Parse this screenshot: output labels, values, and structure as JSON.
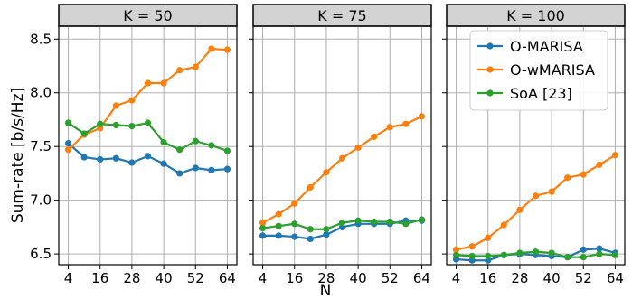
{
  "chart_data": {
    "type": "line",
    "ylabel": "Sum-rate [b/s/Hz]",
    "xlabel": "N",
    "x": [
      4,
      10,
      16,
      22,
      28,
      34,
      40,
      46,
      52,
      58,
      64
    ],
    "x_ticks": [
      "4",
      "16",
      "28",
      "40",
      "52",
      "64"
    ],
    "y_ticks": [
      "6.5",
      "7.0",
      "7.5",
      "8.0",
      "8.5"
    ],
    "ylim": [
      6.4,
      8.62
    ],
    "xlim": [
      0.4,
      67.6
    ],
    "grid": true,
    "legend_position": "top-right of right panel",
    "colors": {
      "O-MARISA": "#1f77b4",
      "O-wMARISA": "#ff7f0e",
      "SoA [23]": "#2ca02c"
    },
    "legend": [
      "O-MARISA",
      "O-wMARISA",
      "SoA [23]"
    ],
    "panels": [
      {
        "title": "K = 50",
        "series": [
          {
            "name": "O-MARISA",
            "values": [
              7.53,
              7.4,
              7.38,
              7.39,
              7.35,
              7.41,
              7.34,
              7.25,
              7.3,
              7.28,
              7.29
            ]
          },
          {
            "name": "O-wMARISA",
            "values": [
              7.47,
              7.61,
              7.67,
              7.88,
              7.93,
              8.09,
              8.09,
              8.21,
              8.24,
              8.41,
              8.4
            ]
          },
          {
            "name": "SoA [23]",
            "values": [
              7.72,
              7.62,
              7.71,
              7.7,
              7.69,
              7.72,
              7.54,
              7.47,
              7.55,
              7.51,
              7.46
            ]
          }
        ]
      },
      {
        "title": "K = 75",
        "series": [
          {
            "name": "O-MARISA",
            "values": [
              6.67,
              6.67,
              6.66,
              6.64,
              6.68,
              6.75,
              6.78,
              6.78,
              6.78,
              6.81,
              6.81
            ]
          },
          {
            "name": "O-wMARISA",
            "values": [
              6.79,
              6.87,
              6.97,
              7.12,
              7.26,
              7.39,
              7.49,
              7.59,
              7.68,
              7.71,
              7.78
            ]
          },
          {
            "name": "SoA [23]",
            "values": [
              6.74,
              6.76,
              6.78,
              6.73,
              6.73,
              6.79,
              6.81,
              6.8,
              6.8,
              6.78,
              6.82
            ]
          }
        ]
      },
      {
        "title": "K = 100",
        "series": [
          {
            "name": "O-MARISA",
            "values": [
              6.45,
              6.44,
              6.44,
              6.49,
              6.5,
              6.49,
              6.48,
              6.47,
              6.54,
              6.55,
              6.51
            ]
          },
          {
            "name": "O-wMARISA",
            "values": [
              6.54,
              6.57,
              6.65,
              6.77,
              6.91,
              7.04,
              7.08,
              7.21,
              7.24,
              7.33,
              7.42
            ]
          },
          {
            "name": "SoA [23]",
            "values": [
              6.49,
              6.48,
              6.48,
              6.49,
              6.51,
              6.52,
              6.51,
              6.47,
              6.47,
              6.5,
              6.49
            ]
          }
        ]
      }
    ]
  }
}
